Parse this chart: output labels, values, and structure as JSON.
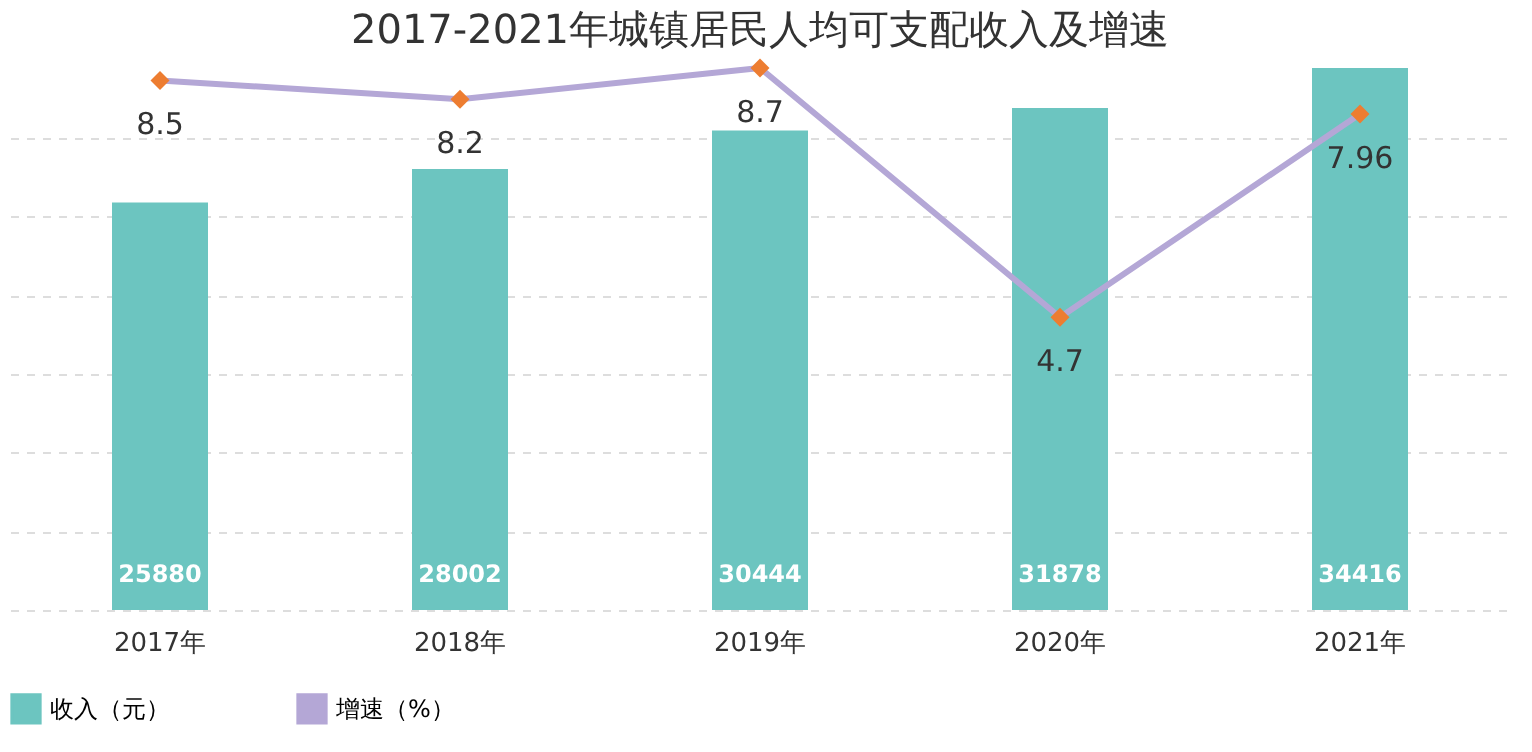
{
  "chart_data": {
    "type": "bar",
    "title": "2017-2021年城镇居民人均可支配收入及增速",
    "categories": [
      "2017年",
      "2018年",
      "2019年",
      "2020年",
      "2021年"
    ],
    "series": [
      {
        "name": "收入（元）",
        "color": "#6cc5c0",
        "values": [
          25880,
          28002,
          30444,
          31878,
          34416
        ]
      },
      {
        "name": "增速（%）",
        "type": "line",
        "axis": "y2",
        "color": "#b4a7d6",
        "colors": [
          "#ed7d31",
          "#ed7d31",
          "#ed7d31",
          "#ed7d31",
          "#ed7d31"
        ],
        "marker": "diamond",
        "values": [
          8.5,
          8.2,
          8.7,
          4.7,
          7.96
        ]
      }
    ],
    "data_labels": true,
    "grid": "y",
    "legend": "bottom",
    "tick_labels": "x"
  }
}
